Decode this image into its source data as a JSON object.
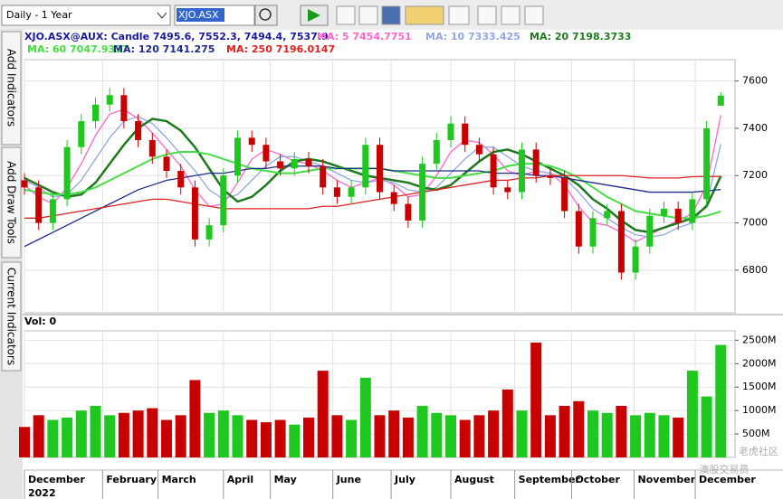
{
  "toolbar": {
    "period": "Daily - 1 Year",
    "symbol": "XJO.ASX"
  },
  "side_tabs": [
    "Add Indicators",
    "Add Draw Tools",
    "Current Indicators"
  ],
  "watermark": [
    "老虎社区",
    "澳股交易员"
  ],
  "chart_data": [
    {
      "type": "candlestick",
      "title": "XJO.ASX@AUX: Candle 7495.6, 7552.3, 7494.4, 7537.9",
      "x": [
        0,
        1,
        2,
        3,
        4,
        5,
        6,
        7,
        8,
        9,
        10,
        11,
        12,
        13,
        14,
        15,
        16,
        17,
        18,
        19,
        20,
        21,
        22,
        23,
        24,
        25,
        26,
        27,
        28,
        29,
        30,
        31,
        32,
        33,
        34,
        35,
        36,
        37,
        38,
        39,
        40,
        41,
        42,
        43,
        44,
        45,
        46,
        47,
        48,
        49
      ],
      "open": [
        7180,
        7150,
        7000,
        7100,
        7320,
        7430,
        7500,
        7540,
        7430,
        7350,
        7280,
        7220,
        7150,
        6930,
        6990,
        7200,
        7360,
        7330,
        7260,
        7230,
        7270,
        7240,
        7150,
        7110,
        7150,
        7330,
        7130,
        7080,
        7010,
        7250,
        7350,
        7420,
        7330,
        7290,
        7150,
        7130,
        7310,
        7200,
        7190,
        7050,
        6900,
        7020,
        7050,
        6790,
        6900,
        7030,
        7060,
        7000,
        7100,
        7495.6
      ],
      "high": [
        7210,
        7180,
        7130,
        7350,
        7460,
        7530,
        7570,
        7570,
        7460,
        7380,
        7310,
        7250,
        7180,
        7020,
        7230,
        7390,
        7390,
        7360,
        7290,
        7300,
        7300,
        7270,
        7180,
        7180,
        7360,
        7360,
        7160,
        7110,
        7280,
        7380,
        7450,
        7450,
        7360,
        7320,
        7180,
        7340,
        7340,
        7230,
        7220,
        7080,
        7050,
        7080,
        7080,
        6930,
        7060,
        7090,
        7090,
        7130,
        7430,
        7552.3
      ],
      "low": [
        7120,
        6970,
        6970,
        7070,
        7290,
        7400,
        7470,
        7400,
        7320,
        7250,
        7190,
        7120,
        6900,
        6900,
        6960,
        7170,
        7300,
        7230,
        7200,
        7200,
        7210,
        7120,
        7080,
        7080,
        7120,
        7100,
        7050,
        6980,
        6980,
        7220,
        7320,
        7300,
        7260,
        7120,
        7100,
        7100,
        7170,
        7160,
        7020,
        6870,
        6870,
        6990,
        6760,
        6760,
        6870,
        7000,
        6970,
        6970,
        7070,
        7494.4
      ],
      "close": [
        7150,
        7000,
        7100,
        7320,
        7430,
        7500,
        7540,
        7430,
        7350,
        7280,
        7220,
        7150,
        6930,
        6990,
        7200,
        7360,
        7330,
        7260,
        7230,
        7270,
        7240,
        7150,
        7110,
        7150,
        7330,
        7130,
        7080,
        7010,
        7250,
        7350,
        7420,
        7330,
        7290,
        7150,
        7130,
        7310,
        7200,
        7190,
        7050,
        6900,
        7020,
        7050,
        6790,
        6900,
        7030,
        7060,
        7000,
        7100,
        7400,
        7537.9
      ],
      "up_color": "#1ec81e",
      "down_color": "#c80000",
      "ma_series": [
        {
          "name": "MA: 5 7454.7751",
          "color": "#ff66cc",
          "values": [
            7160,
            7110,
            7080,
            7150,
            7250,
            7370,
            7460,
            7480,
            7440,
            7380,
            7310,
            7240,
            7140,
            7070,
            7080,
            7170,
            7270,
            7310,
            7290,
            7260,
            7250,
            7220,
            7180,
            7150,
            7170,
            7190,
            7160,
            7110,
            7120,
            7200,
            7300,
            7350,
            7340,
            7290,
            7220,
            7200,
            7220,
            7210,
            7160,
            7070,
            7000,
            6990,
            6960,
            6920,
            6950,
            6980,
            7010,
            7040,
            7160,
            7455
          ]
        },
        {
          "name": "MA: 10 7333.425",
          "color": "#8fa8e0",
          "values": [
            7180,
            7150,
            7110,
            7120,
            7180,
            7270,
            7360,
            7430,
            7450,
            7420,
            7360,
            7290,
            7220,
            7140,
            7100,
            7120,
            7180,
            7240,
            7280,
            7280,
            7260,
            7240,
            7210,
            7180,
            7170,
            7180,
            7170,
            7140,
            7130,
            7150,
            7210,
            7270,
            7320,
            7320,
            7280,
            7240,
            7220,
            7210,
            7190,
            7130,
            7060,
            7020,
            6980,
            6950,
            6940,
            6950,
            6980,
            7000,
            7080,
            7333
          ]
        },
        {
          "name": "MA: 20 7198.3733",
          "color": "#1f7a1f",
          "values": [
            7190,
            7160,
            7130,
            7110,
            7120,
            7170,
            7250,
            7330,
            7400,
            7440,
            7430,
            7390,
            7320,
            7230,
            7140,
            7090,
            7110,
            7160,
            7220,
            7260,
            7270,
            7260,
            7240,
            7220,
            7200,
            7190,
            7180,
            7170,
            7150,
            7140,
            7160,
            7210,
            7260,
            7300,
            7310,
            7290,
            7260,
            7230,
            7200,
            7160,
            7100,
            7060,
            7010,
            6970,
            6960,
            6980,
            7000,
            7020,
            7070,
            7198
          ]
        },
        {
          "name": "MA: 60 7047.9337",
          "color": "#44dd44",
          "values": [
            7140,
            7130,
            7120,
            7120,
            7130,
            7150,
            7180,
            7210,
            7240,
            7270,
            7290,
            7300,
            7300,
            7290,
            7270,
            7250,
            7230,
            7220,
            7210,
            7210,
            7220,
            7230,
            7230,
            7230,
            7230,
            7230,
            7220,
            7210,
            7200,
            7190,
            7190,
            7200,
            7210,
            7220,
            7240,
            7250,
            7250,
            7240,
            7220,
            7190,
            7150,
            7110,
            7080,
            7050,
            7040,
            7030,
            7020,
            7020,
            7030,
            7048
          ]
        },
        {
          "name": "MA: 120 7141.275",
          "color": "#1e2a8c",
          "values": [
            6900,
            6930,
            6960,
            6990,
            7020,
            7050,
            7080,
            7110,
            7140,
            7160,
            7180,
            7190,
            7200,
            7210,
            7210,
            7220,
            7230,
            7230,
            7240,
            7240,
            7240,
            7240,
            7230,
            7230,
            7230,
            7230,
            7220,
            7220,
            7220,
            7220,
            7220,
            7220,
            7220,
            7210,
            7210,
            7210,
            7200,
            7200,
            7190,
            7180,
            7170,
            7160,
            7150,
            7140,
            7130,
            7130,
            7130,
            7130,
            7135,
            7141
          ]
        },
        {
          "name": "MA: 250 7196.0147",
          "color": "#dd2222",
          "values": [
            7020,
            7020,
            7030,
            7040,
            7050,
            7060,
            7070,
            7080,
            7090,
            7100,
            7100,
            7090,
            7080,
            7070,
            7060,
            7060,
            7060,
            7060,
            7060,
            7060,
            7060,
            7070,
            7070,
            7080,
            7090,
            7100,
            7110,
            7120,
            7130,
            7140,
            7150,
            7160,
            7170,
            7180,
            7180,
            7190,
            7190,
            7200,
            7200,
            7200,
            7200,
            7200,
            7200,
            7195,
            7190,
            7190,
            7190,
            7195,
            7196,
            7196
          ]
        }
      ],
      "xlim": [
        0,
        50
      ],
      "xticks": [
        {
          "value": 0,
          "label": "December"
        },
        {
          "value": 5.5,
          "label": "February"
        },
        {
          "value": 9.4,
          "label": "March"
        },
        {
          "value": 14,
          "label": "April"
        },
        {
          "value": 17.3,
          "label": "May"
        },
        {
          "value": 21.7,
          "label": "June"
        },
        {
          "value": 25.8,
          "label": "July"
        },
        {
          "value": 30,
          "label": "August"
        },
        {
          "value": 34.5,
          "label": "September"
        },
        {
          "value": 38.5,
          "label": "October"
        },
        {
          "value": 42.9,
          "label": "November"
        },
        {
          "value": 47.2,
          "label": "December"
        }
      ],
      "x_year": "2022",
      "ylim": [
        6620,
        7690
      ],
      "yticks": [
        6800,
        7000,
        7200,
        7400,
        7600
      ],
      "grid": true
    },
    {
      "type": "bar",
      "title": "Vol: 0",
      "values": [
        650,
        900,
        800,
        850,
        1000,
        1100,
        900,
        950,
        1000,
        1050,
        800,
        900,
        1650,
        950,
        1000,
        900,
        800,
        750,
        800,
        700,
        850,
        1850,
        900,
        800,
        1700,
        900,
        1000,
        850,
        1100,
        950,
        900,
        800,
        900,
        1000,
        1450,
        1000,
        2450,
        900,
        1100,
        1200,
        1000,
        950,
        1100,
        900,
        950,
        900,
        850,
        1850,
        1300,
        2400
      ],
      "ylim": [
        0,
        2700
      ],
      "yticks": [
        {
          "value": 500,
          "label": "500M"
        },
        {
          "value": 1000,
          "label": "1000M"
        },
        {
          "value": 1500,
          "label": "1500M"
        },
        {
          "value": 2000,
          "label": "2000M"
        },
        {
          "value": 2500,
          "label": "2500M"
        }
      ],
      "grid": true
    }
  ]
}
